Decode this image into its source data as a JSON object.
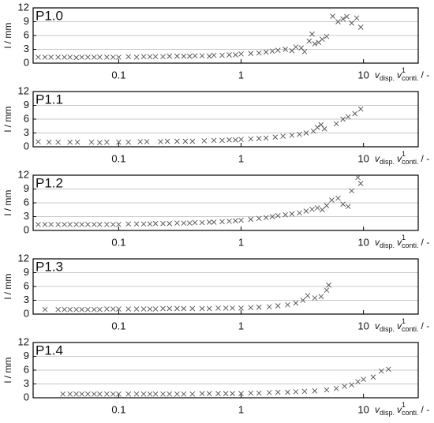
{
  "chart_data": [
    {
      "type": "scatter",
      "title": "P1.0",
      "ylabel": "l / mm",
      "xlabel": {
        "var1": "v",
        "sub1": "disp.",
        "var2": "v",
        "sup2": "1",
        "sub2": "conti.",
        "unit": "/ -"
      },
      "log_x": true,
      "grid": true,
      "color": "#555555",
      "xlim": [
        0.02,
        28
      ],
      "ylim": [
        0,
        12
      ],
      "xticks": [
        {
          "value": 0.1,
          "label": "0.1"
        },
        1,
        10
      ],
      "yticks": [
        0,
        3,
        6,
        9,
        12
      ],
      "x": [
        0.022,
        0.025,
        0.028,
        0.032,
        0.036,
        0.04,
        0.045,
        0.05,
        0.056,
        0.063,
        0.07,
        0.08,
        0.09,
        0.1,
        0.12,
        0.14,
        0.16,
        0.18,
        0.2,
        0.23,
        0.26,
        0.3,
        0.34,
        0.38,
        0.42,
        0.48,
        0.55,
        0.6,
        0.7,
        0.8,
        0.9,
        1.0,
        1.2,
        1.4,
        1.6,
        1.8,
        2.0,
        2.3,
        2.6,
        2.8,
        3.1,
        3.3,
        3.6,
        3.8,
        4.0,
        4.3,
        4.6,
        5.0,
        5.6,
        6.2,
        6.8,
        7.3,
        8.0,
        8.8,
        9.5
      ],
      "values": [
        1.3,
        1.3,
        1.3,
        1.3,
        1.3,
        1.3,
        1.2,
        1.3,
        1.3,
        1.3,
        1.3,
        1.3,
        1.3,
        1.3,
        1.4,
        1.3,
        1.4,
        1.4,
        1.4,
        1.4,
        1.5,
        1.5,
        1.5,
        1.5,
        1.6,
        1.6,
        1.5,
        1.7,
        1.7,
        1.8,
        1.8,
        2.0,
        2.1,
        2.2,
        2.4,
        2.6,
        2.8,
        3.0,
        2.7,
        3.5,
        3.3,
        2.5,
        4.8,
        6.3,
        4.2,
        4.5,
        5.2,
        5.8,
        10.2,
        9.0,
        9.6,
        10.1,
        8.7,
        9.8,
        7.8
      ]
    },
    {
      "type": "scatter",
      "title": "P1.1",
      "ylabel": "l / mm",
      "xlabel": {
        "var1": "v",
        "sub1": "disp.",
        "var2": "v",
        "sup2": "1",
        "sub2": "conti.",
        "unit": "/ -"
      },
      "log_x": true,
      "grid": true,
      "color": "#555555",
      "xlim": [
        0.02,
        28
      ],
      "ylim": [
        0,
        12
      ],
      "xticks": [
        {
          "value": 0.1,
          "label": "0.1"
        },
        1,
        10
      ],
      "yticks": [
        0,
        3,
        6,
        9,
        12
      ],
      "x": [
        0.022,
        0.027,
        0.032,
        0.04,
        0.046,
        0.06,
        0.07,
        0.08,
        0.1,
        0.12,
        0.15,
        0.17,
        0.22,
        0.25,
        0.3,
        0.35,
        0.4,
        0.5,
        0.6,
        0.7,
        0.8,
        0.9,
        1.0,
        1.2,
        1.4,
        1.6,
        1.9,
        2.2,
        2.6,
        3.0,
        3.4,
        3.9,
        4.2,
        4.5,
        4.8,
        6.0,
        6.8,
        7.5,
        8.5,
        9.5
      ],
      "values": [
        1.1,
        1.0,
        1.0,
        1.0,
        1.0,
        1.0,
        0.9,
        1.0,
        1.0,
        1.0,
        1.1,
        1.1,
        1.1,
        1.2,
        1.2,
        1.2,
        1.2,
        1.3,
        1.4,
        1.4,
        1.5,
        1.5,
        1.6,
        1.7,
        1.8,
        1.9,
        2.1,
        2.3,
        2.5,
        2.7,
        3.0,
        3.4,
        4.2,
        4.8,
        3.9,
        5.0,
        6.0,
        6.5,
        7.2,
        8.2
      ]
    },
    {
      "type": "scatter",
      "title": "P1.2",
      "ylabel": "l / mm",
      "xlabel": {
        "var1": "v",
        "sub1": "disp.",
        "var2": "v",
        "sup2": "1",
        "sub2": "conti.",
        "unit": "/ -"
      },
      "log_x": true,
      "grid": true,
      "color": "#555555",
      "xlim": [
        0.02,
        28
      ],
      "ylim": [
        0,
        12
      ],
      "xticks": [
        {
          "value": 0.1,
          "label": "0.1"
        },
        1,
        10
      ],
      "yticks": [
        0,
        3,
        6,
        9,
        12
      ],
      "x": [
        0.022,
        0.025,
        0.028,
        0.032,
        0.036,
        0.04,
        0.045,
        0.05,
        0.056,
        0.063,
        0.07,
        0.08,
        0.09,
        0.1,
        0.12,
        0.14,
        0.16,
        0.18,
        0.2,
        0.23,
        0.26,
        0.3,
        0.34,
        0.38,
        0.42,
        0.48,
        0.55,
        0.6,
        0.7,
        0.8,
        0.9,
        1.0,
        1.2,
        1.4,
        1.6,
        1.8,
        2.0,
        2.3,
        2.6,
        3.0,
        3.4,
        3.8,
        4.2,
        4.6,
        5.0,
        5.5,
        6.2,
        6.8,
        7.5,
        8.0,
        9.0,
        9.5
      ],
      "values": [
        1.3,
        1.3,
        1.3,
        1.3,
        1.3,
        1.3,
        1.3,
        1.3,
        1.3,
        1.3,
        1.3,
        1.3,
        1.3,
        1.3,
        1.4,
        1.4,
        1.4,
        1.4,
        1.5,
        1.5,
        1.5,
        1.6,
        1.6,
        1.6,
        1.7,
        1.7,
        1.8,
        1.8,
        1.9,
        2.0,
        2.1,
        2.2,
        2.4,
        2.6,
        2.8,
        3.0,
        3.2,
        3.4,
        3.6,
        3.8,
        4.2,
        4.6,
        4.9,
        4.5,
        5.4,
        6.6,
        7.0,
        5.7,
        5.2,
        8.6,
        11.5,
        10.2
      ]
    },
    {
      "type": "scatter",
      "title": "P1.3",
      "ylabel": "l / mm",
      "xlabel": {
        "var1": "v",
        "sub1": "disp.",
        "var2": "v",
        "sup2": "1",
        "sub2": "conti.",
        "unit": "/ -"
      },
      "log_x": true,
      "grid": true,
      "color": "#555555",
      "xlim": [
        0.02,
        28
      ],
      "ylim": [
        0,
        12
      ],
      "xticks": [
        {
          "value": 0.1,
          "label": "0.1"
        },
        1,
        10
      ],
      "yticks": [
        0,
        3,
        6,
        9,
        12
      ],
      "x": [
        0.025,
        0.032,
        0.036,
        0.04,
        0.045,
        0.05,
        0.056,
        0.063,
        0.07,
        0.08,
        0.09,
        0.1,
        0.12,
        0.14,
        0.16,
        0.18,
        0.2,
        0.23,
        0.26,
        0.3,
        0.34,
        0.4,
        0.48,
        0.55,
        0.65,
        0.75,
        0.85,
        1.0,
        1.2,
        1.4,
        1.7,
        2.0,
        2.4,
        2.8,
        3.2,
        3.5,
        4.0,
        4.5,
        5.0,
        5.2
      ],
      "values": [
        1.0,
        1.0,
        1.0,
        1.0,
        1.0,
        1.0,
        1.0,
        1.0,
        1.0,
        1.1,
        1.1,
        1.1,
        1.1,
        1.1,
        1.1,
        1.1,
        1.1,
        1.2,
        1.2,
        1.2,
        1.2,
        1.2,
        1.2,
        1.2,
        1.3,
        1.3,
        1.3,
        1.3,
        1.4,
        1.5,
        1.6,
        1.8,
        2.0,
        2.4,
        3.0,
        4.0,
        3.5,
        3.8,
        5.2,
        6.3
      ]
    },
    {
      "type": "scatter",
      "title": "P1.4",
      "ylabel": "l / mm",
      "xlabel": {
        "var1": "v",
        "sub1": "disp.",
        "var2": "v",
        "sup2": "1",
        "sub2": "conti.",
        "unit": "/ -"
      },
      "log_x": true,
      "grid": true,
      "color": "#555555",
      "xlim": [
        0.02,
        28
      ],
      "ylim": [
        0,
        12
      ],
      "xticks": [
        {
          "value": 0.1,
          "label": "0.1"
        },
        1,
        10
      ],
      "yticks": [
        0,
        3,
        6,
        9,
        12
      ],
      "x": [
        0.035,
        0.04,
        0.045,
        0.05,
        0.056,
        0.063,
        0.07,
        0.08,
        0.09,
        0.1,
        0.12,
        0.14,
        0.16,
        0.18,
        0.2,
        0.23,
        0.26,
        0.3,
        0.34,
        0.4,
        0.48,
        0.55,
        0.65,
        0.75,
        0.85,
        1.0,
        1.2,
        1.4,
        1.7,
        2.0,
        2.4,
        2.8,
        3.3,
        4.0,
        5.0,
        6.0,
        7.0,
        8.0,
        9.0,
        10.0,
        12.0,
        14.0,
        16.0
      ],
      "values": [
        0.8,
        0.8,
        0.8,
        0.8,
        0.8,
        0.8,
        0.8,
        0.8,
        0.8,
        0.8,
        0.8,
        0.8,
        0.8,
        0.8,
        0.8,
        0.8,
        0.8,
        0.8,
        0.8,
        0.8,
        0.9,
        0.9,
        0.9,
        0.9,
        0.9,
        0.9,
        1.0,
        1.0,
        1.1,
        1.2,
        1.2,
        1.3,
        1.4,
        1.5,
        1.7,
        2.0,
        2.5,
        2.8,
        3.5,
        4.0,
        4.5,
        5.8,
        6.2
      ]
    }
  ]
}
